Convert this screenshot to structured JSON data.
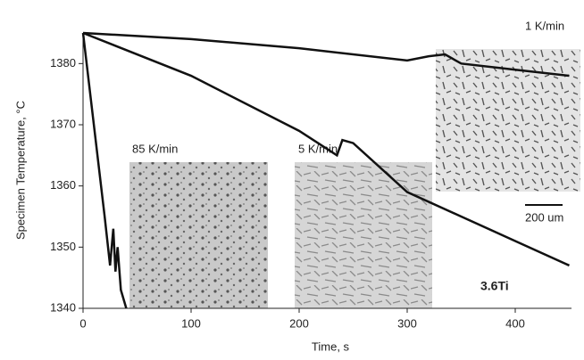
{
  "chart_data": {
    "type": "line",
    "x_label": "Time, s",
    "y_label": "Specimen Temperature, °C",
    "xlim": [
      0,
      450
    ],
    "xticks": [
      0,
      100,
      200,
      300,
      400
    ],
    "ylim": [
      1340,
      1385
    ],
    "yticks": [
      1340,
      1350,
      1360,
      1370,
      1380
    ],
    "series": [
      {
        "name": "1 K/min",
        "color": "#111111",
        "x": [
          0,
          100,
          200,
          300,
          320,
          335,
          350,
          400,
          450
        ],
        "values": [
          1385,
          1384,
          1382.5,
          1380.5,
          1381.2,
          1381.5,
          1380,
          1379,
          1378
        ]
      },
      {
        "name": "5 K/min",
        "color": "#111111",
        "x": [
          0,
          100,
          200,
          235,
          240,
          250,
          300,
          350,
          400,
          450
        ],
        "values": [
          1385,
          1378,
          1369,
          1365,
          1367.5,
          1367,
          1359,
          1355,
          1351,
          1347
        ]
      },
      {
        "name": "85 K/min",
        "color": "#111111",
        "x": [
          0,
          10,
          20,
          25,
          28,
          30,
          32,
          35,
          40
        ],
        "values": [
          1385,
          1370,
          1355,
          1347,
          1353,
          1346,
          1350,
          1343,
          1340
        ]
      }
    ],
    "annotations": [
      "85 K/min",
      "5 K/min",
      "1 K/min",
      "200 um",
      "3.6Ti"
    ]
  }
}
